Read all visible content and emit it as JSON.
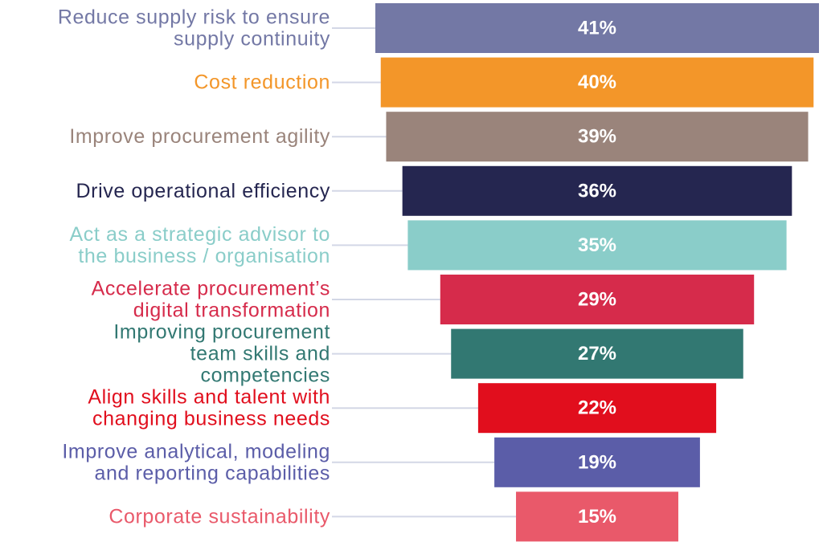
{
  "chart_data": {
    "type": "bar",
    "orientation": "horizontal-centered-funnel",
    "title": "",
    "xlabel": "",
    "ylabel": "",
    "xlim": [
      0,
      41
    ],
    "grid": false,
    "legend": "none",
    "value_suffix": "%",
    "categories": [
      [
        "Reduce supply risk to ensure",
        "supply continuity"
      ],
      [
        "Cost reduction"
      ],
      [
        "Improve procurement agility"
      ],
      [
        "Drive operational efficiency"
      ],
      [
        "Act as a strategic advisor to",
        "the business / organisation"
      ],
      [
        "Accelerate procurement’s",
        "digital transformation"
      ],
      [
        "Improving procurement",
        "team skills and",
        "competencies"
      ],
      [
        "Align skills and talent with",
        "changing business needs"
      ],
      [
        "Improve analytical, modeling",
        "and reporting capabilities"
      ],
      [
        "Corporate sustainability"
      ]
    ],
    "values": [
      41,
      40,
      39,
      36,
      35,
      29,
      27,
      22,
      19,
      15
    ],
    "value_labels": [
      "41%",
      "40%",
      "39%",
      "36%",
      "35%",
      "29%",
      "27%",
      "22%",
      "19%",
      "15%"
    ],
    "colors": [
      "#7378a5",
      "#f39629",
      "#9a847b",
      "#252650",
      "#8acdc9",
      "#d62b4b",
      "#327872",
      "#e10e1d",
      "#5b5da8",
      "#e9596a"
    ],
    "connector_color": "#d3d7e6"
  }
}
